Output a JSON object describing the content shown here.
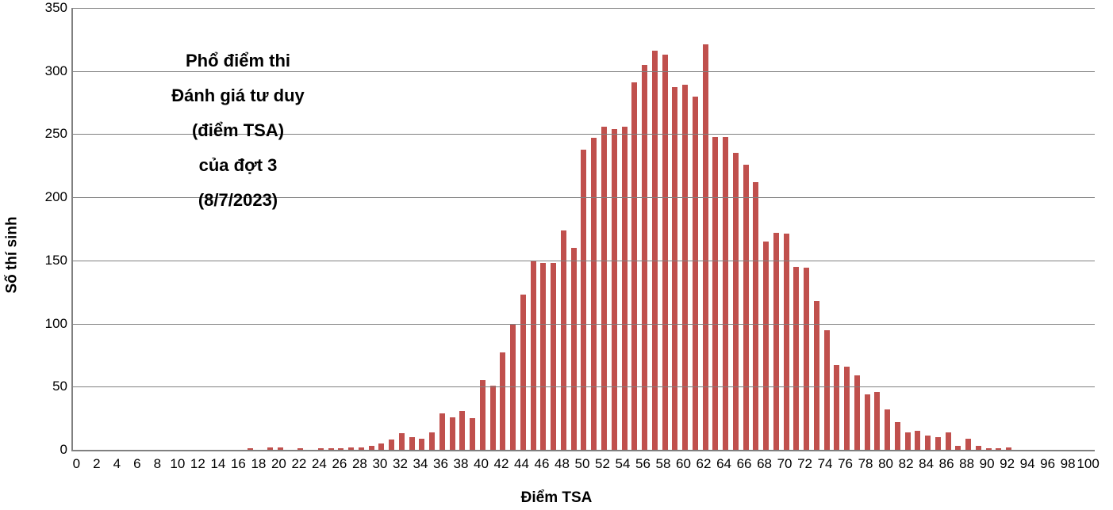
{
  "chart": {
    "type": "bar",
    "title_lines": [
      "Phổ điểm thi",
      "Đánh giá tư duy",
      "(điểm TSA)",
      "của đợt 3",
      "(8/7/2023)"
    ],
    "title_fontsize": 22,
    "title_fontweight": 900,
    "x_label": "Điểm TSA",
    "y_label": "Số thí sinh",
    "axis_label_fontsize": 19,
    "tick_fontsize": 17,
    "background_color": "#ffffff",
    "grid_color": "#808080",
    "axis_color": "#808080",
    "bar_color": "#c0504d",
    "bar_width_ratio": 0.55,
    "xlim": [
      0,
      100
    ],
    "x_tick_step_label": 2,
    "x_tick_step_bar": 1,
    "ylim": [
      0,
      350
    ],
    "y_tick_step": 50,
    "values": [
      0,
      0,
      0,
      0,
      0,
      0,
      0,
      0,
      0,
      0,
      0,
      0,
      0,
      0,
      0,
      0,
      0,
      1,
      0,
      2,
      2,
      0,
      1,
      0,
      1,
      1,
      1,
      2,
      2,
      3,
      5,
      8,
      13,
      10,
      9,
      14,
      29,
      26,
      31,
      25,
      55,
      51,
      77,
      99,
      123,
      150,
      148,
      148,
      174,
      160,
      238,
      247,
      256,
      254,
      256,
      291,
      305,
      316,
      313,
      287,
      289,
      280,
      321,
      248,
      248,
      235,
      226,
      212,
      165,
      172,
      171,
      145,
      144,
      118,
      95,
      67,
      66,
      59,
      44,
      46,
      32,
      22,
      14,
      15,
      11,
      10,
      14,
      3,
      9,
      3,
      1,
      1,
      2,
      0,
      0,
      0,
      0,
      0,
      0,
      0,
      0
    ]
  }
}
